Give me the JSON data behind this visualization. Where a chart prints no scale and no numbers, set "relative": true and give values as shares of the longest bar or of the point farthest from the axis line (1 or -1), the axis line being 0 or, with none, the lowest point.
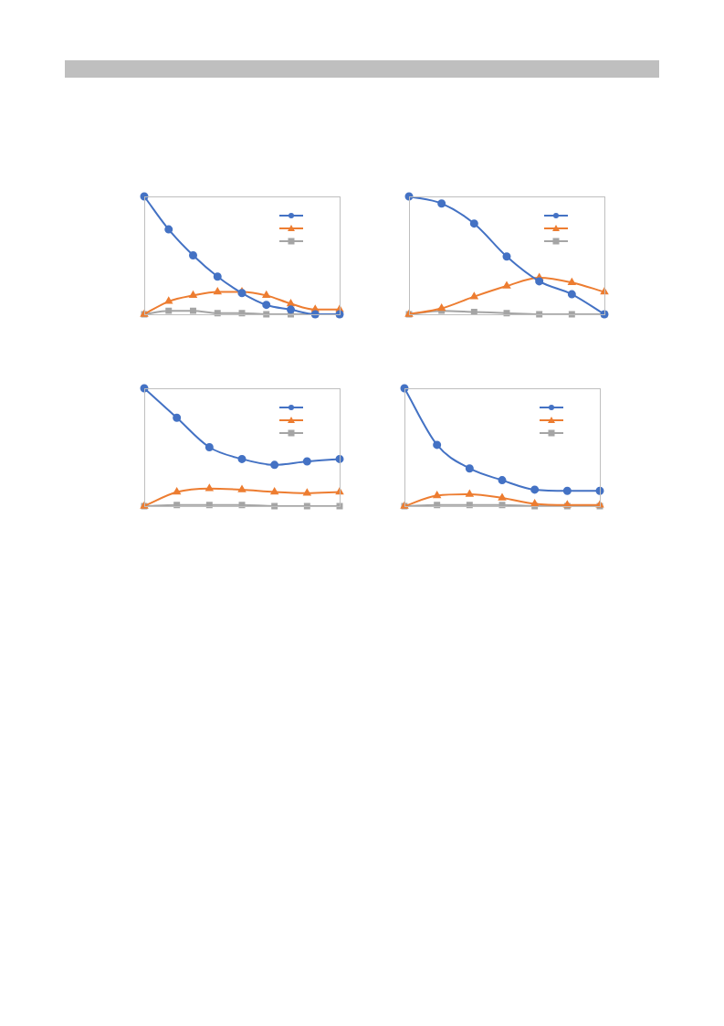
{
  "chart_data": [
    {
      "type": "line",
      "relative": true,
      "categories": [
        null,
        null,
        null,
        null,
        null,
        null,
        null,
        null,
        null
      ],
      "series": [
        {
          "color": "#4472c4",
          "marker": "circle",
          "values": [
            1,
            0.72,
            0.5,
            0.32,
            0.18,
            0.08,
            0.04,
            0,
            0
          ]
        },
        {
          "color": "#ed7d31",
          "marker": "triangle",
          "values": [
            0,
            0.11,
            0.16,
            0.19,
            0.19,
            0.16,
            0.09,
            0.04,
            0.04
          ]
        },
        {
          "color": "#a5a5a5",
          "marker": "square",
          "values": [
            0,
            0.03,
            0.03,
            0.01,
            0.01,
            0,
            0,
            0,
            0
          ]
        }
      ]
    },
    {
      "type": "line",
      "relative": true,
      "categories": [
        null,
        null,
        null,
        null,
        null,
        null,
        null
      ],
      "series": [
        {
          "color": "#4472c4",
          "marker": "circle",
          "values": [
            1,
            0.94,
            0.77,
            0.49,
            0.28,
            0.17,
            0
          ]
        },
        {
          "color": "#ed7d31",
          "marker": "triangle",
          "values": [
            0,
            0.05,
            0.15,
            0.24,
            0.31,
            0.27,
            0.19
          ]
        },
        {
          "color": "#a5a5a5",
          "marker": "square",
          "values": [
            0,
            0.03,
            0.02,
            0.01,
            0,
            0,
            0
          ]
        }
      ]
    },
    {
      "type": "line",
      "relative": true,
      "categories": [
        null,
        null,
        null,
        null,
        null,
        null,
        null
      ],
      "series": [
        {
          "color": "#4472c4",
          "marker": "circle",
          "values": [
            1,
            0.75,
            0.5,
            0.4,
            0.35,
            0.38,
            0.4
          ]
        },
        {
          "color": "#ed7d31",
          "marker": "triangle",
          "values": [
            0,
            0.12,
            0.15,
            0.14,
            0.12,
            0.11,
            0.12
          ]
        },
        {
          "color": "#a5a5a5",
          "marker": "square",
          "values": [
            0,
            0.01,
            0.01,
            0.01,
            0,
            0,
            0
          ]
        }
      ]
    },
    {
      "type": "line",
      "relative": true,
      "categories": [
        null,
        null,
        null,
        null,
        null,
        null,
        null
      ],
      "series": [
        {
          "color": "#4472c4",
          "marker": "circle",
          "values": [
            1,
            0.52,
            0.32,
            0.22,
            0.14,
            0.13,
            0.13
          ]
        },
        {
          "color": "#ed7d31",
          "marker": "triangle",
          "values": [
            0,
            0.09,
            0.1,
            0.07,
            0.02,
            0.01,
            0.01
          ]
        },
        {
          "color": "#a5a5a5",
          "marker": "square",
          "values": [
            0,
            0.01,
            0.01,
            0.01,
            0,
            0,
            0
          ]
        }
      ]
    }
  ]
}
